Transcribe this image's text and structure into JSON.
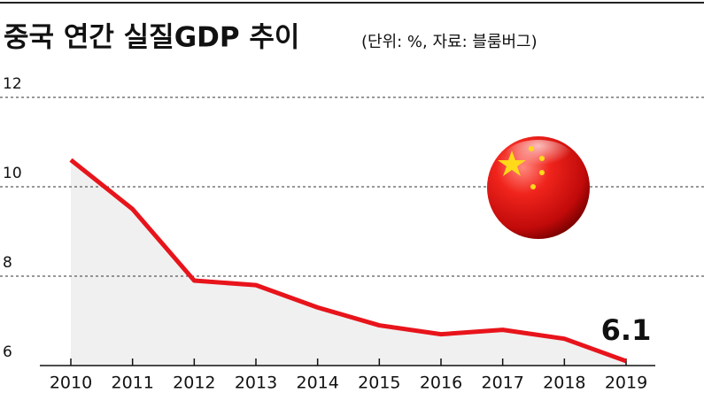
{
  "chart_data": {
    "type": "line",
    "title": "중국 연간 실질GDP 추이",
    "subtitle": "(단위: %, 자료: 블룸버그)",
    "categories": [
      "2010",
      "2011",
      "2012",
      "2013",
      "2014",
      "2015",
      "2016",
      "2017",
      "2018",
      "2019"
    ],
    "values": [
      10.6,
      9.5,
      7.9,
      7.8,
      7.3,
      6.9,
      6.7,
      6.8,
      6.6,
      6.1
    ],
    "color": "#e8141b",
    "area_color": "#f0f0f0",
    "ylim": [
      6,
      12
    ],
    "yticks": [
      6,
      8,
      10,
      12
    ],
    "grid": true
  }
}
